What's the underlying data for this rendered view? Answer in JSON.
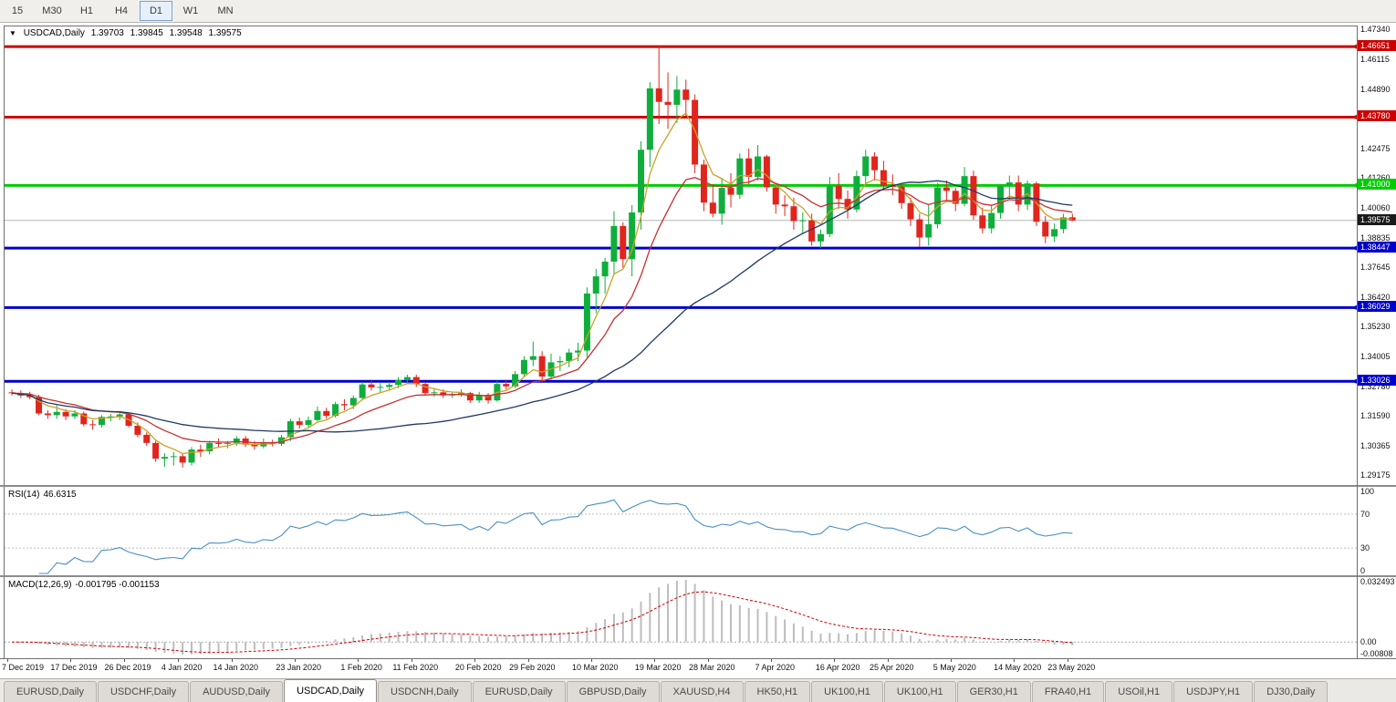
{
  "toolbar": {
    "timeframes": [
      "15",
      "M30",
      "H1",
      "H4",
      "D1",
      "W1",
      "MN"
    ],
    "active": "D1"
  },
  "chart": {
    "title": {
      "symbol": "USDCAD,Daily",
      "open": "1.39703",
      "high": "1.39845",
      "low": "1.39548",
      "close": "1.39575"
    },
    "scale": {
      "max": 1.4747,
      "min": 1.2877
    },
    "axis_ticks": [
      "1.47340",
      "1.46115",
      "1.44890",
      "1.42475",
      "1.41260",
      "1.40060",
      "1.38835",
      "1.37645",
      "1.36420",
      "1.35230",
      "1.34005",
      "1.32780",
      "1.31590",
      "1.30365",
      "1.29175"
    ],
    "hlines": [
      {
        "value": 1.46651,
        "label": "1.46651",
        "color": "#cc0000",
        "width": 3,
        "type": "resistance"
      },
      {
        "value": 1.4378,
        "label": "1.43780",
        "color": "#cc0000",
        "width": 3,
        "type": "resistance"
      },
      {
        "value": 1.41,
        "label": "1.41000",
        "color": "#00cc00",
        "width": 3,
        "type": "pivot"
      },
      {
        "value": 1.38447,
        "label": "1.38447",
        "color": "#0000cc",
        "width": 3,
        "type": "support"
      },
      {
        "value": 1.36029,
        "label": "1.36029",
        "color": "#0000cc",
        "width": 3,
        "type": "support"
      },
      {
        "value": 1.33026,
        "label": "1.33026",
        "color": "#0000cc",
        "width": 3,
        "type": "support"
      }
    ],
    "current_price": {
      "value": 1.39575,
      "label": "1.39575",
      "color": "#1a1a1a"
    },
    "colors": {
      "up": "#0fae3c",
      "down": "#e0251d"
    },
    "mas": [
      {
        "name": "fast-ma",
        "type": "ema",
        "period": 5,
        "color": "#c9a227"
      },
      {
        "name": "medium-ma",
        "type": "ema",
        "period": 13,
        "color": "#c53030"
      },
      {
        "name": "slow-ma",
        "type": "sma",
        "period": 34,
        "color": "#1f3864"
      }
    ],
    "date_labels": [
      {
        "text": "7 Dec 2019",
        "i": 0
      },
      {
        "text": "17 Dec 2019",
        "i": 7
      },
      {
        "text": "26 Dec 2019",
        "i": 13
      },
      {
        "text": "4 Jan 2020",
        "i": 19
      },
      {
        "text": "14 Jan 2020",
        "i": 25
      },
      {
        "text": "23 Jan 2020",
        "i": 32
      },
      {
        "text": "1 Feb 2020",
        "i": 39
      },
      {
        "text": "11 Feb 2020",
        "i": 45
      },
      {
        "text": "20 Feb 2020",
        "i": 52
      },
      {
        "text": "29 Feb 2020",
        "i": 58
      },
      {
        "text": "10 Mar 2020",
        "i": 65
      },
      {
        "text": "19 Mar 2020",
        "i": 72
      },
      {
        "text": "28 Mar 2020",
        "i": 78
      },
      {
        "text": "7 Apr 2020",
        "i": 85
      },
      {
        "text": "16 Apr 2020",
        "i": 92
      },
      {
        "text": "25 Apr 2020",
        "i": 98
      },
      {
        "text": "5 May 2020",
        "i": 105
      },
      {
        "text": "14 May 2020",
        "i": 112
      },
      {
        "text": "23 May 2020",
        "i": 118
      }
    ],
    "candles": [
      [
        1.3258,
        1.327,
        1.3245,
        1.3255
      ],
      [
        1.3255,
        1.3266,
        1.3235,
        1.3245
      ],
      [
        1.3245,
        1.326,
        1.323,
        1.3238
      ],
      [
        1.3238,
        1.3248,
        1.3165,
        1.3172
      ],
      [
        1.3172,
        1.3185,
        1.315,
        1.3165
      ],
      [
        1.3165,
        1.3205,
        1.315,
        1.3178
      ],
      [
        1.3178,
        1.319,
        1.3145,
        1.316
      ],
      [
        1.316,
        1.3185,
        1.315,
        1.3172
      ],
      [
        1.3172,
        1.318,
        1.312,
        1.3128
      ],
      [
        1.3128,
        1.3145,
        1.3105,
        1.3125
      ],
      [
        1.3125,
        1.3165,
        1.3115,
        1.3158
      ],
      [
        1.3158,
        1.317,
        1.314,
        1.316
      ],
      [
        1.316,
        1.3175,
        1.3145,
        1.3168
      ],
      [
        1.3168,
        1.3172,
        1.3115,
        1.3122
      ],
      [
        1.3122,
        1.3135,
        1.3075,
        1.3085
      ],
      [
        1.3085,
        1.3095,
        1.304,
        1.3052
      ],
      [
        1.3052,
        1.306,
        1.2975,
        1.2988
      ],
      [
        1.2988,
        1.301,
        1.2955,
        1.2995
      ],
      [
        1.2995,
        1.3015,
        1.296,
        1.2998
      ],
      [
        1.2998,
        1.301,
        1.2952,
        1.2972
      ],
      [
        1.2972,
        1.3035,
        1.296,
        1.3025
      ],
      [
        1.3025,
        1.3045,
        1.2995,
        1.3018
      ],
      [
        1.3018,
        1.306,
        1.3005,
        1.3052
      ],
      [
        1.3052,
        1.307,
        1.3035,
        1.3048
      ],
      [
        1.3048,
        1.306,
        1.303,
        1.3052
      ],
      [
        1.3052,
        1.308,
        1.304,
        1.307
      ],
      [
        1.307,
        1.308,
        1.3035,
        1.3045
      ],
      [
        1.3045,
        1.306,
        1.3025,
        1.3038
      ],
      [
        1.3038,
        1.307,
        1.303,
        1.3055
      ],
      [
        1.3055,
        1.3065,
        1.3038,
        1.3048
      ],
      [
        1.3048,
        1.3085,
        1.304,
        1.3075
      ],
      [
        1.3075,
        1.315,
        1.306,
        1.314
      ],
      [
        1.314,
        1.3155,
        1.311,
        1.3125
      ],
      [
        1.3125,
        1.316,
        1.3115,
        1.3145
      ],
      [
        1.3145,
        1.32,
        1.314,
        1.3182
      ],
      [
        1.3182,
        1.3195,
        1.315,
        1.3162
      ],
      [
        1.3162,
        1.322,
        1.3155,
        1.321
      ],
      [
        1.321,
        1.323,
        1.3185,
        1.3205
      ],
      [
        1.3205,
        1.3245,
        1.319,
        1.3235
      ],
      [
        1.3235,
        1.33,
        1.3225,
        1.329
      ],
      [
        1.329,
        1.3305,
        1.3265,
        1.3278
      ],
      [
        1.3278,
        1.3295,
        1.3258,
        1.328
      ],
      [
        1.328,
        1.33,
        1.3265,
        1.3288
      ],
      [
        1.3288,
        1.332,
        1.3275,
        1.3308
      ],
      [
        1.3308,
        1.333,
        1.3295,
        1.332
      ],
      [
        1.332,
        1.333,
        1.328,
        1.3292
      ],
      [
        1.3292,
        1.33,
        1.3245,
        1.3255
      ],
      [
        1.3255,
        1.3275,
        1.324,
        1.3258
      ],
      [
        1.3258,
        1.327,
        1.3235,
        1.3245
      ],
      [
        1.3245,
        1.326,
        1.3235,
        1.325
      ],
      [
        1.325,
        1.327,
        1.324,
        1.3255
      ],
      [
        1.3255,
        1.326,
        1.3215,
        1.3225
      ],
      [
        1.3225,
        1.326,
        1.3215,
        1.3248
      ],
      [
        1.3248,
        1.3255,
        1.3212,
        1.3225
      ],
      [
        1.3225,
        1.3305,
        1.322,
        1.3292
      ],
      [
        1.3292,
        1.331,
        1.327,
        1.3282
      ],
      [
        1.3282,
        1.3345,
        1.3275,
        1.3332
      ],
      [
        1.3332,
        1.3405,
        1.332,
        1.339
      ],
      [
        1.339,
        1.3465,
        1.3365,
        1.3405
      ],
      [
        1.3405,
        1.3425,
        1.3305,
        1.3322
      ],
      [
        1.3322,
        1.3415,
        1.331,
        1.338
      ],
      [
        1.338,
        1.3405,
        1.3345,
        1.3385
      ],
      [
        1.3385,
        1.3435,
        1.336,
        1.342
      ],
      [
        1.342,
        1.346,
        1.3385,
        1.3428
      ],
      [
        1.3428,
        1.3685,
        1.34,
        1.366
      ],
      [
        1.366,
        1.376,
        1.358,
        1.373
      ],
      [
        1.373,
        1.3805,
        1.366,
        1.379
      ],
      [
        1.379,
        1.3995,
        1.3735,
        1.3935
      ],
      [
        1.3935,
        1.395,
        1.3765,
        1.38
      ],
      [
        1.38,
        1.402,
        1.373,
        1.399
      ],
      [
        1.399,
        1.428,
        1.392,
        1.4245
      ],
      [
        1.4245,
        1.452,
        1.4175,
        1.4495
      ],
      [
        1.4495,
        1.4669,
        1.435,
        1.444
      ],
      [
        1.444,
        1.456,
        1.433,
        1.4428
      ],
      [
        1.4428,
        1.4545,
        1.4355,
        1.449
      ],
      [
        1.449,
        1.453,
        1.438,
        1.4448
      ],
      [
        1.4448,
        1.447,
        1.415,
        1.4185
      ],
      [
        1.4185,
        1.4205,
        1.3995,
        1.403
      ],
      [
        1.403,
        1.4105,
        1.397,
        1.3985
      ],
      [
        1.3985,
        1.413,
        1.394,
        1.409
      ],
      [
        1.409,
        1.415,
        1.401,
        1.4062
      ],
      [
        1.4062,
        1.423,
        1.4045,
        1.421
      ],
      [
        1.421,
        1.425,
        1.4105,
        1.4135
      ],
      [
        1.4135,
        1.4265,
        1.412,
        1.4218
      ],
      [
        1.4218,
        1.4225,
        1.4075,
        1.4092
      ],
      [
        1.4092,
        1.4105,
        1.3985,
        1.4022
      ],
      [
        1.4022,
        1.406,
        1.3975,
        1.4015
      ],
      [
        1.4015,
        1.405,
        1.392,
        1.3955
      ],
      [
        1.3955,
        1.399,
        1.3905,
        1.3958
      ],
      [
        1.3958,
        1.3985,
        1.3855,
        1.3872
      ],
      [
        1.3872,
        1.392,
        1.3845,
        1.3902
      ],
      [
        1.3902,
        1.4135,
        1.389,
        1.4098
      ],
      [
        1.4098,
        1.415,
        1.4005,
        1.4045
      ],
      [
        1.4045,
        1.408,
        1.3965,
        1.4002
      ],
      [
        1.4002,
        1.416,
        1.399,
        1.4138
      ],
      [
        1.4138,
        1.4245,
        1.4105,
        1.4218
      ],
      [
        1.4218,
        1.4235,
        1.412,
        1.4162
      ],
      [
        1.4162,
        1.42,
        1.4085,
        1.4098
      ],
      [
        1.4098,
        1.4145,
        1.406,
        1.4095
      ],
      [
        1.4095,
        1.4105,
        1.4005,
        1.4028
      ],
      [
        1.4028,
        1.405,
        1.3935,
        1.3962
      ],
      [
        1.3962,
        1.3985,
        1.385,
        1.3888
      ],
      [
        1.3888,
        1.402,
        1.3855,
        1.3942
      ],
      [
        1.3942,
        1.411,
        1.3925,
        1.4092
      ],
      [
        1.4092,
        1.412,
        1.4035,
        1.4078
      ],
      [
        1.4078,
        1.409,
        1.3995,
        1.4025
      ],
      [
        1.4025,
        1.4175,
        1.4015,
        1.4138
      ],
      [
        1.4138,
        1.416,
        1.396,
        1.3978
      ],
      [
        1.3978,
        1.401,
        1.3905,
        1.3925
      ],
      [
        1.3925,
        1.402,
        1.3905,
        1.3988
      ],
      [
        1.3988,
        1.4105,
        1.3965,
        1.4098
      ],
      [
        1.4098,
        1.414,
        1.4045,
        1.4112
      ],
      [
        1.4112,
        1.414,
        1.3995,
        1.4022
      ],
      [
        1.4022,
        1.412,
        1.4,
        1.4108
      ],
      [
        1.4108,
        1.4115,
        1.3935,
        1.3952
      ],
      [
        1.3952,
        1.3975,
        1.3865,
        1.3892
      ],
      [
        1.3892,
        1.3945,
        1.387,
        1.3922
      ],
      [
        1.3922,
        1.3985,
        1.3905,
        1.397
      ],
      [
        1.39703,
        1.39845,
        1.39548,
        1.39575
      ]
    ]
  },
  "rsi": {
    "name": "RSI(14)",
    "value": "46.6315",
    "period": 14,
    "color": "#4a90c2",
    "levels": [
      {
        "v": 100,
        "label": "100"
      },
      {
        "v": 70,
        "label": "70"
      },
      {
        "v": 30,
        "label": "30"
      },
      {
        "v": 0,
        "label": "0"
      }
    ]
  },
  "macd": {
    "name": "MACD(12,26,9)",
    "values": "-0.001795 -0.001153",
    "fast": 12,
    "slow": 26,
    "signal": 9,
    "hist_color": "#bdbdbd",
    "signal_color": "#cc0000",
    "axis": [
      {
        "v": 0.032493,
        "label": "0.032493"
      },
      {
        "v": 0,
        "label": "0.00"
      },
      {
        "v": -0.00808,
        "label": "-0.00808"
      }
    ]
  },
  "tabs": {
    "active_index": 3,
    "items": [
      "EURUSD,Daily",
      "USDCHF,Daily",
      "AUDUSD,Daily",
      "USDCAD,Daily",
      "USDCNH,Daily",
      "EURUSD,Daily",
      "GBPUSD,Daily",
      "XAUUSD,H4",
      "HK50,H1",
      "UK100,H1",
      "UK100,H1",
      "GER30,H1",
      "FRA40,H1",
      "USOil,H1",
      "USDJPY,H1",
      "DJ30,Daily"
    ]
  }
}
